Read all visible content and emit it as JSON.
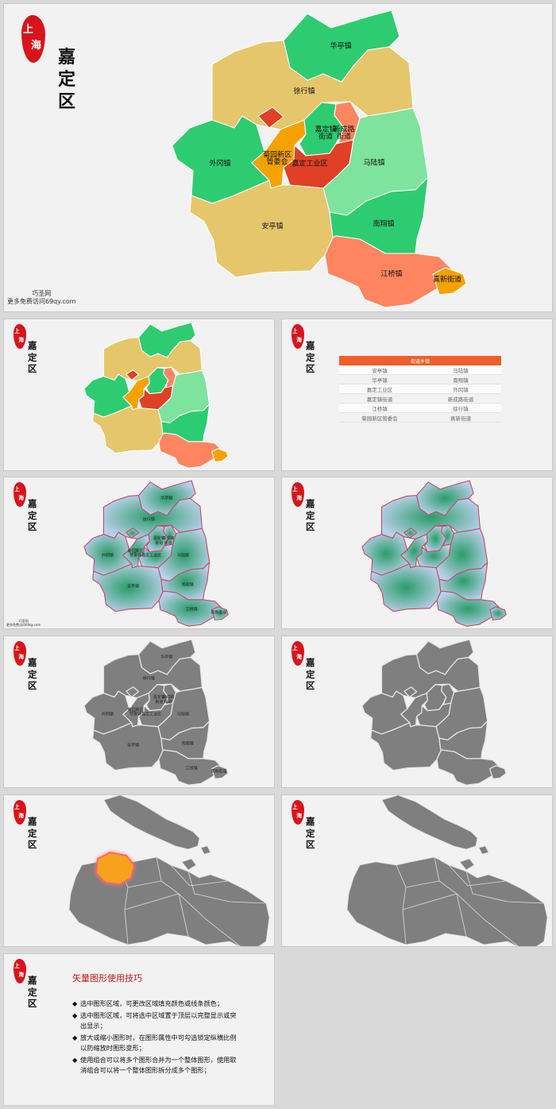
{
  "brand": {
    "seal_text": "上海",
    "district": [
      "嘉",
      "定",
      "区"
    ]
  },
  "watermark": {
    "line1": "巧圣网",
    "line2": "更多免费访问69qy.com"
  },
  "towns": {
    "huating": "华亭镇",
    "xuhang": "徐行镇",
    "waigang": "外冈镇",
    "jiading_street": "嘉定镇街道",
    "xinchenglu": "新成路街道",
    "juyuan": "菊园新区管委会",
    "industrial": "嘉定工业区",
    "malu": "马陆镇",
    "anting": "安亭镇",
    "nanxiang": "南翔镇",
    "jiangqiao": "江桥镇",
    "zhenxin": "真新街道"
  },
  "street_table": {
    "header": "街道乡镇",
    "rows": [
      [
        "安亭镇",
        "马陆镇"
      ],
      [
        "华亭镇",
        "南翔镇"
      ],
      [
        "嘉定工业区",
        "外冈镇"
      ],
      [
        "嘉定镇街道",
        "新成路街道"
      ],
      [
        "江桥镇",
        "徐行镇"
      ],
      [
        "菊园新区管委会",
        "真新街道"
      ]
    ]
  },
  "tips": {
    "title": "矢量图形使用技巧",
    "bullet": "◆",
    "items": [
      "选中图形区域，可更改区域填充颜色或线条颜色；",
      "选中图形区域，可将选中区域置于顶层以完整显示或突出显示；",
      "放大或缩小图形时，在图形属性中可勾选锁定纵横比例以防缩放时图形变形；",
      "使用组合可以将多个图形合并为一个整体图形，使用取消组合可以将一个整体图形拆分成多个图形；"
    ]
  },
  "colors": {
    "green": "#2ecc71",
    "light_green": "#7ee39d",
    "tan": "#e6c66a",
    "orange": "#f5a200",
    "red": "#e04026",
    "coral": "#ff8561",
    "seal_red": "#d8141b",
    "gray": "#7f7f7f",
    "blue": "#b8cfe8",
    "teal": "#2a9d6a",
    "highlight": "#f7a21b"
  }
}
